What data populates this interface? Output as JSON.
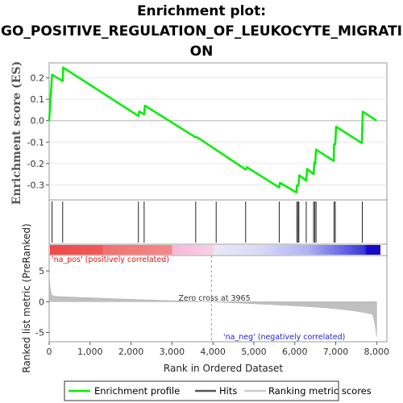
{
  "title_line1": "Enrichment plot:",
  "title_line2": "GO_POSITIVE_REGULATION_OF_LEUKOCYTE_MIGRATI",
  "title_line3": "ON",
  "chart_data": {
    "type": "line",
    "es_panel": {
      "ylabel": "Enrichment score (ES)",
      "ylim": [
        -0.37,
        0.27
      ],
      "yticks": [
        "0.2",
        "0.1",
        "0.0",
        "-0.1",
        "-0.2",
        "-0.3"
      ],
      "ytick_values": [
        0.2,
        0.1,
        0.0,
        -0.1,
        -0.2,
        -0.3
      ],
      "series": [
        {
          "name": "Enrichment profile",
          "color": "#00ee00",
          "points": [
            [
              0,
              0.0
            ],
            [
              70,
              0.215
            ],
            [
              330,
              0.185
            ],
            [
              340,
              0.248
            ],
            [
              2180,
              0.022
            ],
            [
              2200,
              0.043
            ],
            [
              2320,
              0.03
            ],
            [
              2340,
              0.07
            ],
            [
              3580,
              -0.078
            ],
            [
              3620,
              -0.078
            ],
            [
              4800,
              -0.228
            ],
            [
              4830,
              -0.217
            ],
            [
              5620,
              -0.312
            ],
            [
              5640,
              -0.29
            ],
            [
              6040,
              -0.335
            ],
            [
              6050,
              -0.303
            ],
            [
              6090,
              -0.303
            ],
            [
              6110,
              -0.255
            ],
            [
              6280,
              -0.28
            ],
            [
              6300,
              -0.225
            ],
            [
              6460,
              -0.25
            ],
            [
              6480,
              -0.195
            ],
            [
              6500,
              -0.2
            ],
            [
              6520,
              -0.135
            ],
            [
              6950,
              -0.188
            ],
            [
              6960,
              -0.11
            ],
            [
              6990,
              -0.11
            ],
            [
              7010,
              -0.028
            ],
            [
              7640,
              -0.105
            ],
            [
              7660,
              0.042
            ],
            [
              8000,
              0.0
            ]
          ]
        }
      ]
    },
    "hits": [
      70,
      330,
      2180,
      2320,
      3580,
      4080,
      4800,
      5620,
      6050,
      6080,
      6100,
      6280,
      6460,
      6490,
      6520,
      6960,
      6990,
      7650
    ],
    "heatmap_label_pos": "'na_pos' (positively correlated)",
    "heatmap_label_neg": "'na_neg' (negatively correlated)",
    "metric_panel": {
      "ylabel": "Ranked list metric (PreRanked)",
      "ylim": [
        -6.5,
        7.5
      ],
      "yticks": [
        "5",
        "0",
        "-5"
      ],
      "ytick_values": [
        5,
        0,
        -5
      ],
      "zero_cross_text": "Zero cross at 3965",
      "zero_cross": 3965
    },
    "xlabel": "Rank in Ordered Dataset",
    "xlim": [
      0,
      8250
    ],
    "xticks": [
      "0",
      "1,000",
      "2,000",
      "3,000",
      "4,000",
      "5,000",
      "6,000",
      "7,000",
      "8,000"
    ],
    "xtick_values": [
      0,
      1000,
      2000,
      3000,
      4000,
      5000,
      6000,
      7000,
      8000
    ],
    "n_genes": 8000
  },
  "legend": {
    "items": [
      {
        "label": "Enrichment profile",
        "color": "#00ee00"
      },
      {
        "label": "Hits",
        "color": "#555555"
      },
      {
        "label": "Ranking metric scores",
        "color": "#cccccc"
      }
    ]
  }
}
